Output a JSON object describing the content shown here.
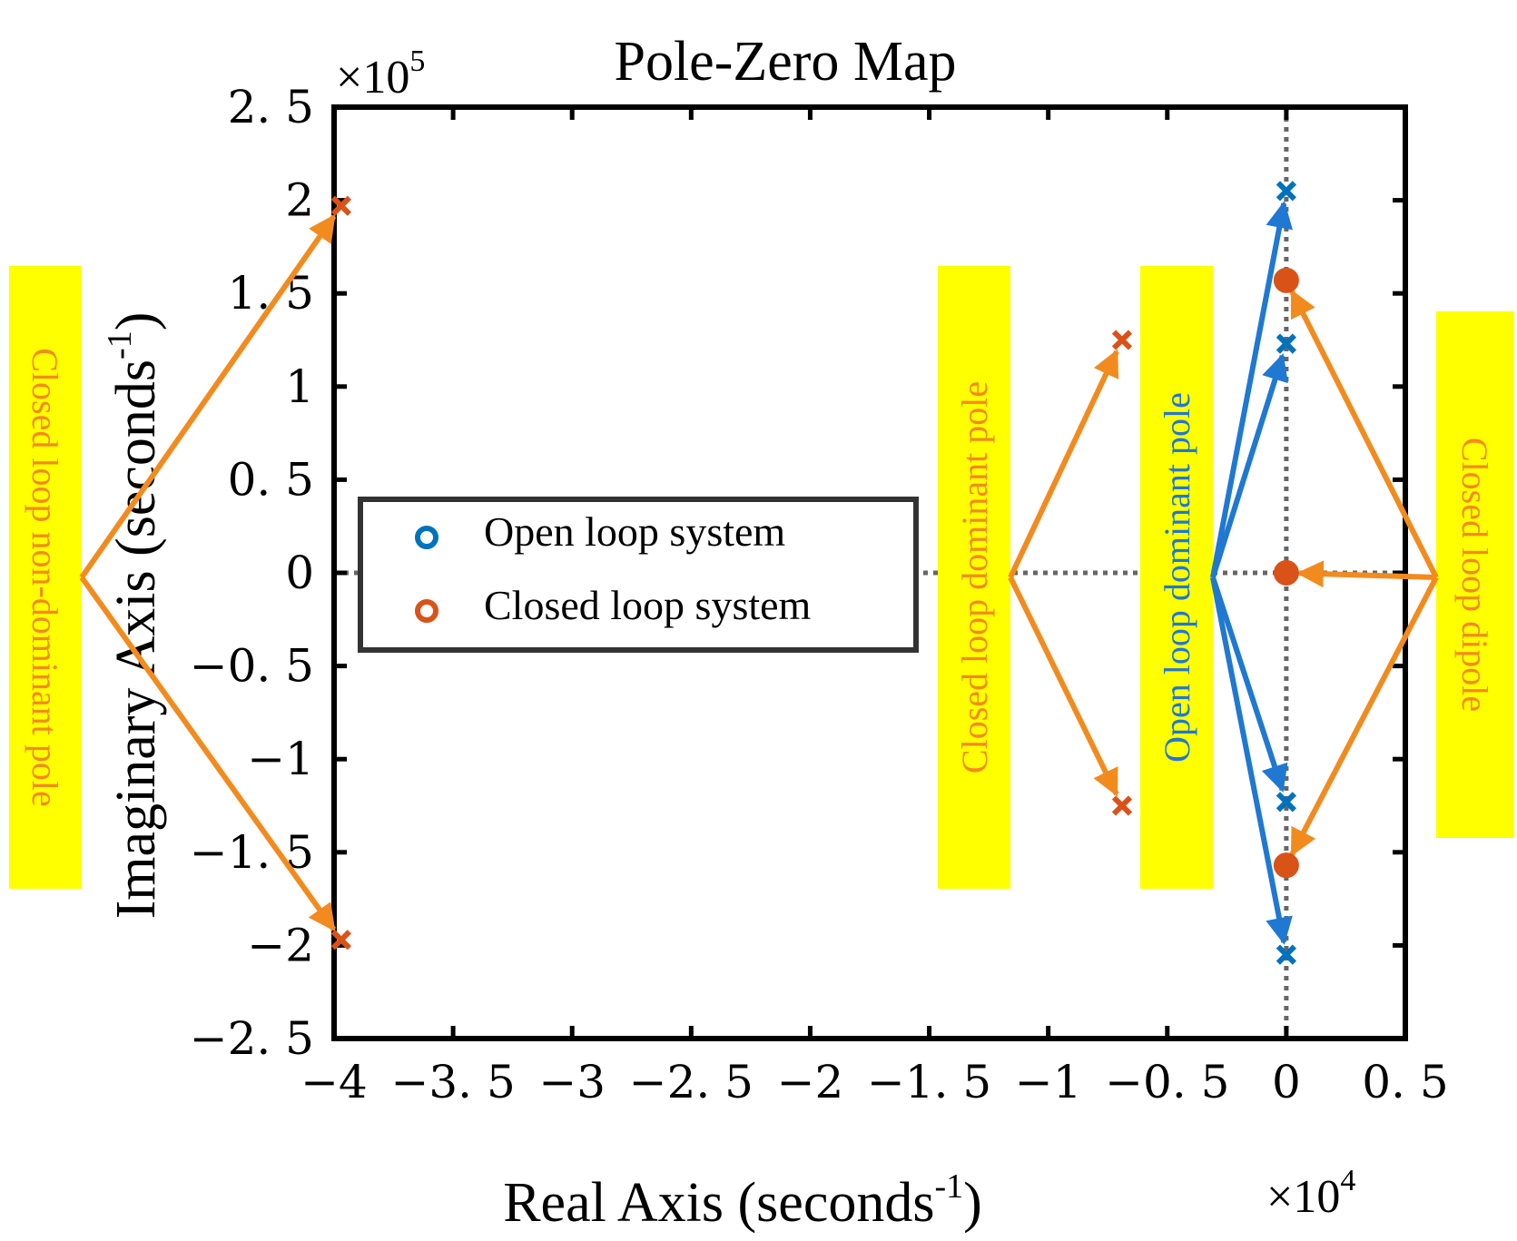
{
  "chart_data": {
    "type": "scatter",
    "title": "Pole-Zero Map",
    "xlabel": "Real Axis (seconds",
    "xlabel_sup": "-1",
    "xlabel_close": ")",
    "ylabel": "Imaginary Axis (seconds",
    "ylabel_sup": "-1",
    "ylabel_close": ")",
    "x_exponent_prefix": "×10",
    "x_exponent": "4",
    "y_exponent_prefix": "×10",
    "y_exponent": "5",
    "xlim": [
      -4.0,
      0.5
    ],
    "ylim": [
      -2.5,
      2.5
    ],
    "xticks": [
      -4,
      -3.5,
      -3,
      -2.5,
      -2,
      -1.5,
      -1,
      -0.5,
      0,
      0.5
    ],
    "xtick_labels": [
      "−4",
      "−3. 5",
      "−3",
      "−2. 5",
      "−2",
      "−1. 5",
      "−1",
      "−0. 5",
      "0",
      "0. 5"
    ],
    "yticks": [
      -2.5,
      -2,
      -1.5,
      -1,
      -0.5,
      0,
      0.5,
      1,
      1.5,
      2,
      2.5
    ],
    "ytick_labels": [
      "−2. 5",
      "−2",
      "−1. 5",
      "−1",
      "−0. 5",
      "0",
      "0. 5",
      "1",
      "1. 5",
      "2",
      "2. 5"
    ],
    "legend": {
      "placement": "center-left",
      "entries": [
        "Open loop system",
        "Closed loop system"
      ]
    },
    "series": [
      {
        "name": "Open loop system",
        "color": "#0072BD",
        "poles": [
          {
            "x": 0.0,
            "y": 2.05
          },
          {
            "x": 0.0,
            "y": 1.23
          },
          {
            "x": 0.0,
            "y": -1.23
          },
          {
            "x": 0.0,
            "y": -2.05
          }
        ],
        "zeros": []
      },
      {
        "name": "Closed loop system",
        "color": "#D95319",
        "poles": [
          {
            "x": -3.97,
            "y": 1.97
          },
          {
            "x": -3.97,
            "y": -1.97
          },
          {
            "x": -0.69,
            "y": 1.25
          },
          {
            "x": -0.69,
            "y": -1.25
          }
        ],
        "zeros": [
          {
            "x": 0.0,
            "y": 1.57
          },
          {
            "x": 0.0,
            "y": 0.0
          },
          {
            "x": 0.0,
            "y": -1.57
          }
        ]
      }
    ],
    "annotations": [
      {
        "text": "Closed loop non-dominant pole",
        "color": "#F28B1E",
        "background": "#FFFF00"
      },
      {
        "text": "Closed loop dominant pole",
        "color": "#F28B1E",
        "background": "#FFFF00"
      },
      {
        "text": "Open loop dominant pole",
        "color": "#1F78D2",
        "background": "#FFFF00"
      },
      {
        "text": "Closed loop dipole",
        "color": "#F28B1E",
        "background": "#FFFF00"
      }
    ],
    "annotation_arrows": [
      {
        "color": "#F28B1E",
        "from": "Closed loop non-dominant pole",
        "to": {
          "x": -3.97,
          "y": 1.97
        }
      },
      {
        "color": "#F28B1E",
        "from": "Closed loop non-dominant pole",
        "to": {
          "x": -3.97,
          "y": -1.97
        }
      },
      {
        "color": "#F28B1E",
        "from": "Closed loop dominant pole",
        "to": {
          "x": -0.69,
          "y": 1.25
        }
      },
      {
        "color": "#F28B1E",
        "from": "Closed loop dominant pole",
        "to": {
          "x": -0.69,
          "y": -1.25
        }
      },
      {
        "color": "#1F78D2",
        "from": "Open loop dominant pole",
        "to": {
          "x": 0.0,
          "y": 2.05
        }
      },
      {
        "color": "#1F78D2",
        "from": "Open loop dominant pole",
        "to": {
          "x": 0.0,
          "y": 1.23
        }
      },
      {
        "color": "#1F78D2",
        "from": "Open loop dominant pole",
        "to": {
          "x": 0.0,
          "y": -1.23
        }
      },
      {
        "color": "#1F78D2",
        "from": "Open loop dominant pole",
        "to": {
          "x": 0.0,
          "y": -2.05
        }
      },
      {
        "color": "#F28B1E",
        "from": "Closed loop dipole",
        "to": {
          "x": 0.0,
          "y": 1.57
        }
      },
      {
        "color": "#F28B1E",
        "from": "Closed loop dipole",
        "to": {
          "x": 0.0,
          "y": 0.0
        }
      },
      {
        "color": "#F28B1E",
        "from": "Closed loop dipole",
        "to": {
          "x": 0.0,
          "y": -1.57
        }
      }
    ]
  }
}
